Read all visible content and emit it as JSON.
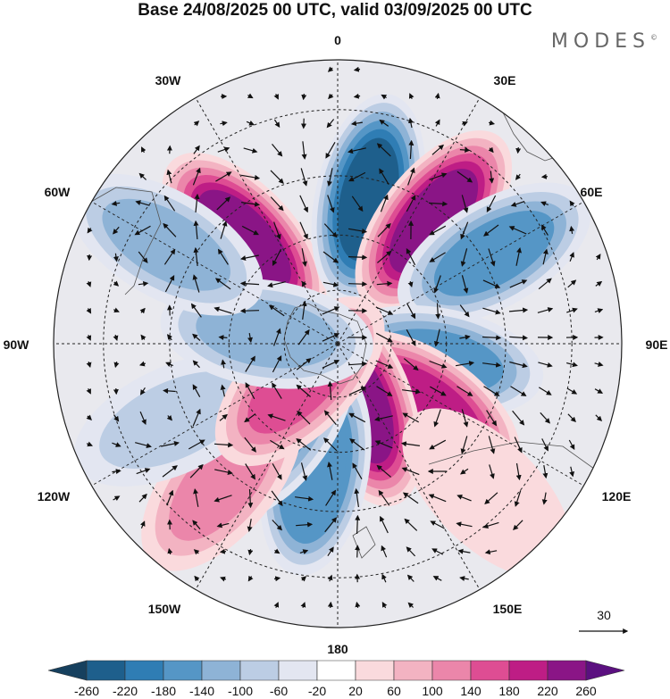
{
  "title": "Base 24/08/2025 00 UTC, valid 03/09/2025 00 UTC",
  "brand": "MODES",
  "brand_mark": "©",
  "map": {
    "projection": "south-polar-stereographic",
    "longitude_labels": {
      "lon_0": "0",
      "lon_30e": "30E",
      "lon_60e": "60E",
      "lon_90e": "90E",
      "lon_120e": "120E",
      "lon_150e": "150E",
      "lon_180": "180",
      "lon_150w": "150W",
      "lon_120w": "120W",
      "lon_90w": "90W",
      "lon_60w": "60W",
      "lon_30w": "30W"
    },
    "reference_vector_label": "30",
    "anomaly_centers": [
      {
        "lon": -42,
        "lat": -52,
        "value": 250
      },
      {
        "lon": 12,
        "lat": -50,
        "value": -250
      },
      {
        "lon": 38,
        "lat": -48,
        "value": 250
      },
      {
        "lon": 60,
        "lat": -42,
        "value": -160
      },
      {
        "lon": 100,
        "lat": -62,
        "value": -160
      },
      {
        "lon": 125,
        "lat": -60,
        "value": 200
      },
      {
        "lon": 160,
        "lat": -72,
        "value": 220
      },
      {
        "lon": -170,
        "lat": -55,
        "value": -180
      },
      {
        "lon": -145,
        "lat": -62,
        "value": -150
      },
      {
        "lon": -140,
        "lat": -42,
        "value": 130
      },
      {
        "lon": -115,
        "lat": -42,
        "value": -80
      },
      {
        "lon": -135,
        "lat": -75,
        "value": 160
      },
      {
        "lon": -82,
        "lat": -70,
        "value": -130
      },
      {
        "lon": -60,
        "lat": -38,
        "value": -120
      },
      {
        "lon": 135,
        "lat": -35,
        "value": 40
      }
    ]
  },
  "colorbar": {
    "tick_labels": {
      "t01": "-260",
      "t02": "-220",
      "t03": "-180",
      "t04": "-140",
      "t05": "-100",
      "t06": "-60",
      "t07": "-20",
      "t08": "20",
      "t09": "60",
      "t10": "100",
      "t11": "140",
      "t12": "180",
      "t13": "220",
      "t14": "260"
    },
    "colors": [
      "#16405e",
      "#1e5f8c",
      "#2f7db4",
      "#5596c6",
      "#8eb3d6",
      "#bccde4",
      "#e3e6f1",
      "#ffffff",
      "#fadadd",
      "#f3b3c2",
      "#eb86aa",
      "#de4d93",
      "#be1d85",
      "#8a1586",
      "#5b1080"
    ]
  }
}
